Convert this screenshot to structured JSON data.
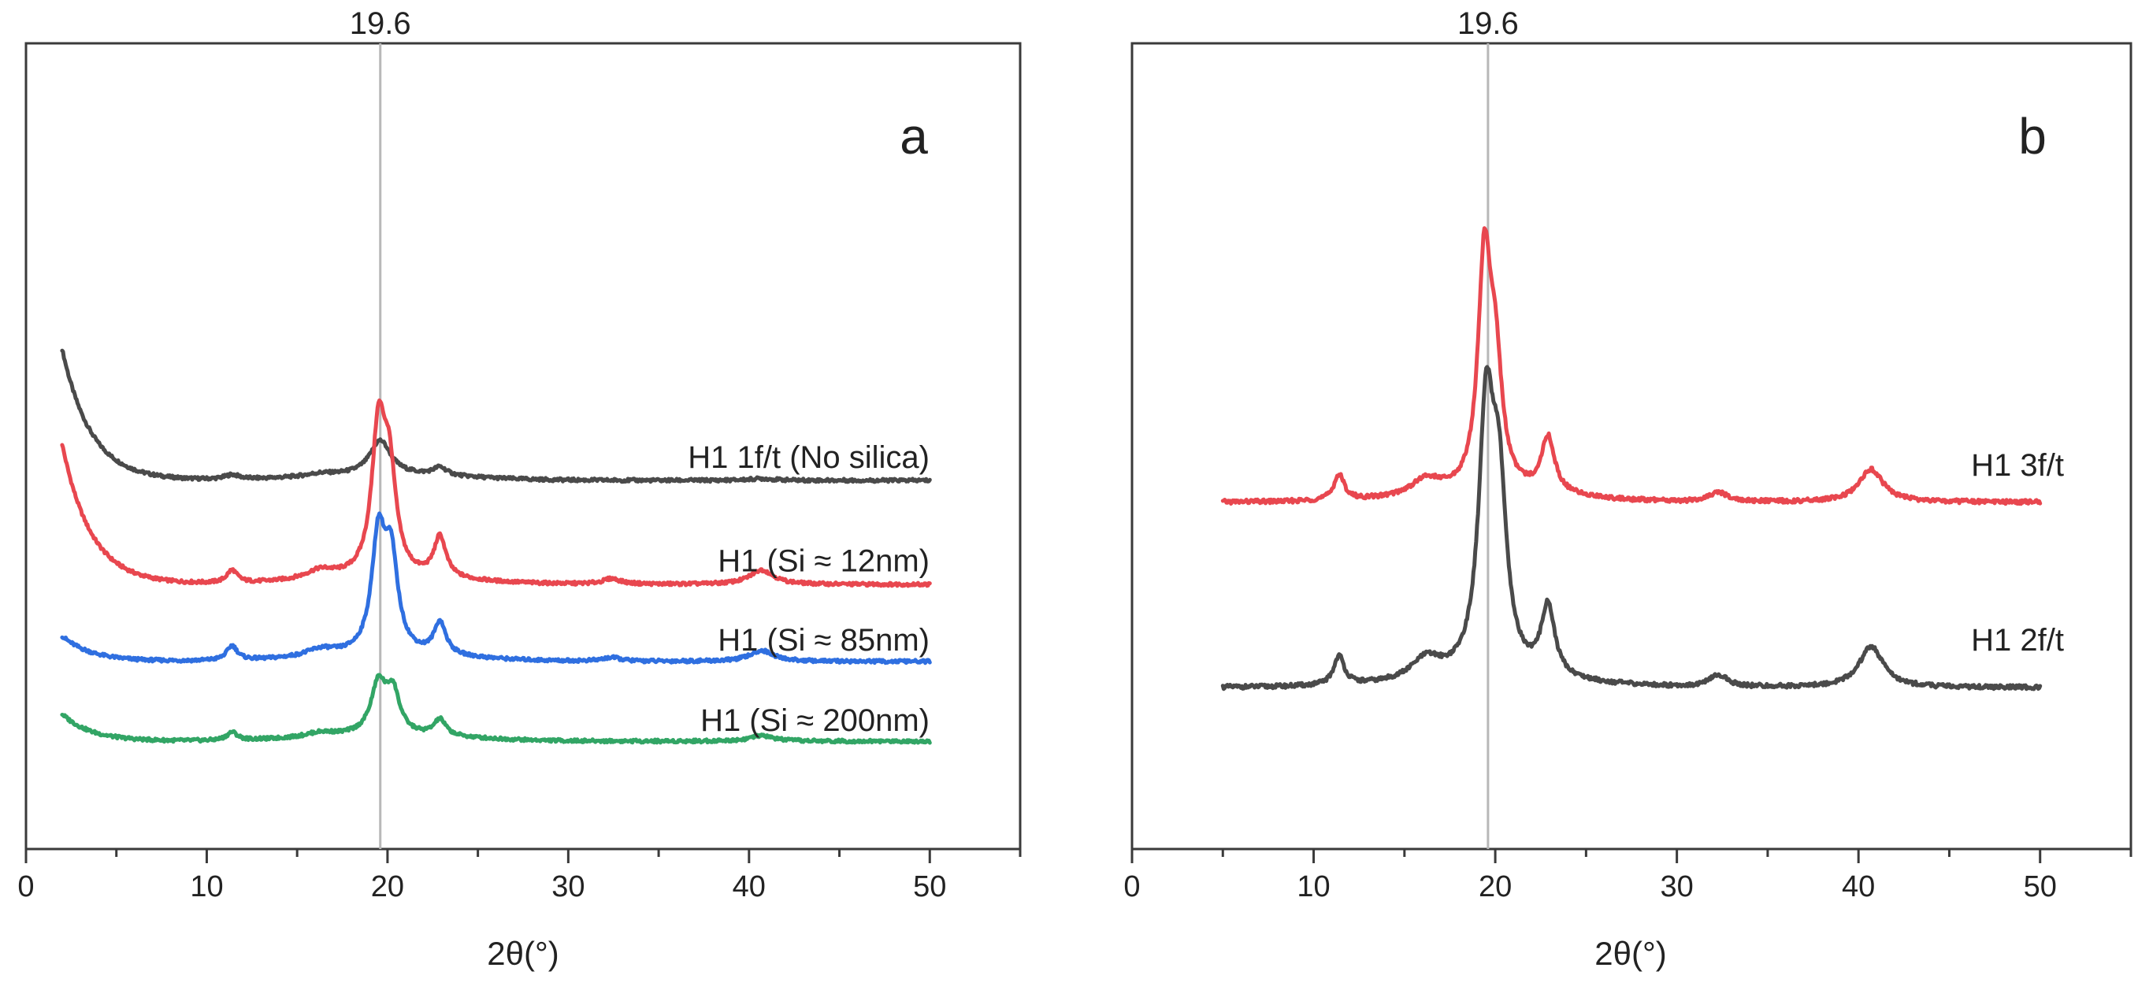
{
  "chart_data": [
    {
      "type": "line",
      "panel": "a",
      "xlabel": "2θ(°)",
      "ylabel": "",
      "xlim": [
        0,
        55
      ],
      "xticks": [
        0,
        10,
        20,
        30,
        40,
        50
      ],
      "reference_line": {
        "x": 19.6,
        "label": "19.6"
      },
      "series": [
        {
          "name": "H1 1f/t (No silica)",
          "color": "#4a4a4a",
          "offset": 3.0,
          "scale": 1.0,
          "start": 2,
          "initial_rise": 1.45,
          "background": 0.0,
          "peaks": [
            [
              11.4,
              0.05,
              0.5
            ],
            [
              16.3,
              0.03,
              1.0
            ],
            [
              19.6,
              0.38,
              0.7
            ],
            [
              22.9,
              0.09,
              0.45
            ],
            [
              40.7,
              0.02,
              0.8
            ]
          ]
        },
        {
          "name": "H1 (Si ≈ 12nm)",
          "color": "#e8474f",
          "offset": 1.85,
          "scale": 1.0,
          "start": 2,
          "initial_rise": 1.55,
          "background": 0.0,
          "peaks": [
            [
              11.4,
              0.14,
              0.35
            ],
            [
              16.3,
              0.1,
              1.0
            ],
            [
              19.5,
              1.55,
              0.45
            ],
            [
              20.1,
              1.05,
              0.45
            ],
            [
              22.9,
              0.45,
              0.4
            ],
            [
              32.4,
              0.06,
              0.6
            ],
            [
              40.7,
              0.16,
              0.8
            ]
          ]
        },
        {
          "name": "H1 (Si ≈ 85nm)",
          "color": "#2f6fe0",
          "offset": 1.0,
          "scale": 1.0,
          "start": 2,
          "initial_rise": 0.28,
          "background": 0.0,
          "peaks": [
            [
              11.4,
              0.16,
              0.35
            ],
            [
              16.3,
              0.08,
              1.0
            ],
            [
              19.5,
              1.25,
              0.45
            ],
            [
              20.2,
              1.0,
              0.45
            ],
            [
              22.9,
              0.36,
              0.4
            ],
            [
              32.4,
              0.04,
              0.6
            ],
            [
              40.7,
              0.12,
              0.8
            ]
          ]
        },
        {
          "name": "H1 (Si ≈ 200nm)",
          "color": "#32a565",
          "offset": 0.12,
          "scale": 1.0,
          "start": 2,
          "initial_rise": 0.3,
          "background": 0.0,
          "peaks": [
            [
              11.4,
              0.09,
              0.35
            ],
            [
              16.3,
              0.05,
              1.0
            ],
            [
              19.5,
              0.55,
              0.5
            ],
            [
              20.3,
              0.45,
              0.45
            ],
            [
              22.9,
              0.18,
              0.4
            ],
            [
              40.7,
              0.06,
              0.8
            ]
          ]
        }
      ]
    },
    {
      "type": "line",
      "panel": "b",
      "xlabel": "2θ(°)",
      "ylabel": "",
      "xlim": [
        0,
        55
      ],
      "xticks": [
        0,
        10,
        20,
        30,
        40,
        50
      ],
      "reference_line": {
        "x": 19.6,
        "label": "19.6"
      },
      "series": [
        {
          "name": "H1 3f/t",
          "color": "#e8474f",
          "offset": 1.55,
          "scale": 1.0,
          "start": 5,
          "initial_rise": 0.0,
          "background": 0.12,
          "peaks": [
            [
              11.4,
              0.22,
              0.35
            ],
            [
              16.2,
              0.14,
              1.0
            ],
            [
              19.4,
              1.9,
              0.42
            ],
            [
              20.0,
              1.0,
              0.45
            ],
            [
              22.9,
              0.48,
              0.45
            ],
            [
              32.3,
              0.08,
              0.6
            ],
            [
              40.7,
              0.28,
              0.8
            ]
          ]
        },
        {
          "name": "H1 2f/t",
          "color": "#4a4a4a",
          "offset": 0.0,
          "scale": 1.0,
          "start": 5,
          "initial_rise": 0.0,
          "background": 0.08,
          "peaks": [
            [
              11.4,
              0.25,
              0.35
            ],
            [
              16.2,
              0.18,
              1.0
            ],
            [
              19.5,
              2.15,
              0.5
            ],
            [
              20.2,
              1.45,
              0.5
            ],
            [
              22.9,
              0.6,
              0.45
            ],
            [
              32.3,
              0.1,
              0.6
            ],
            [
              40.7,
              0.35,
              0.8
            ]
          ]
        }
      ]
    }
  ]
}
